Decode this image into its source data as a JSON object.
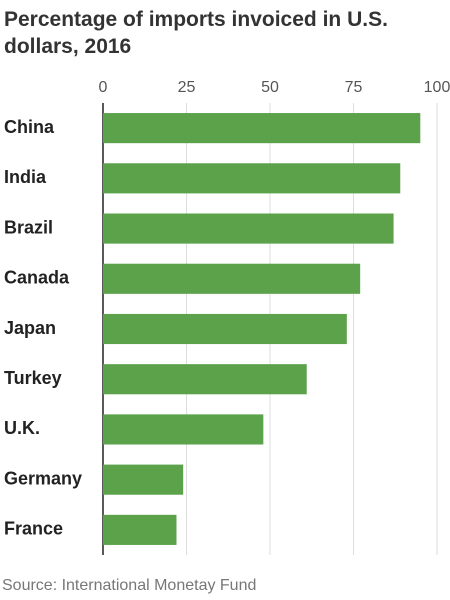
{
  "chart_data": {
    "type": "bar",
    "orientation": "horizontal",
    "title": "Percentage of imports invoiced in U.S. dollars, 2016",
    "source": "Source: International Monetay Fund",
    "categories": [
      "China",
      "India",
      "Brazil",
      "Canada",
      "Japan",
      "Turkey",
      "U.K.",
      "Germany",
      "France"
    ],
    "values": [
      95,
      89,
      87,
      77,
      73,
      61,
      48,
      24,
      22
    ],
    "color": "#5ba24a",
    "xlim": [
      0,
      100
    ],
    "xticks": [
      0,
      25,
      50,
      75,
      100
    ],
    "grid": true
  }
}
